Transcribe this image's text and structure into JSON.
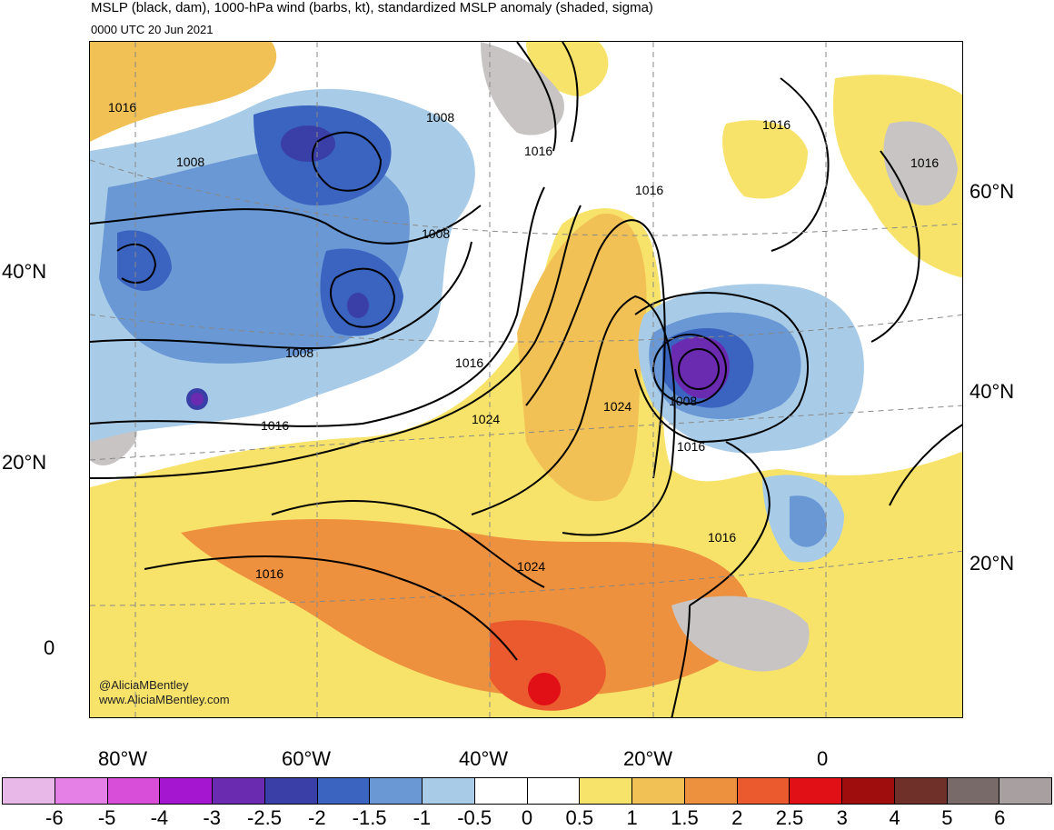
{
  "title": "MSLP (black, dam), 1000-hPa wind (barbs, kt), standardized MSLP anomaly (shaded, sigma)",
  "subtitle": "0000 UTC 20 Jun 2021",
  "credit": [
    "@AliciaMBentley",
    "www.AliciaMBentley.com"
  ],
  "lat_labels_left": [
    "40°N",
    "20°N",
    "0"
  ],
  "lat_labels_right": [
    "60°N",
    "40°N",
    "20°N"
  ],
  "lon_labels": [
    "80°W",
    "60°W",
    "40°W",
    "20°W",
    "0"
  ],
  "contour_labels": [
    "1016",
    "1008",
    "1008",
    "1016",
    "1016",
    "1016",
    "1008",
    "1016",
    "1008",
    "1024",
    "1016",
    "1024",
    "1024",
    "1008",
    "1016",
    "1016",
    "1016",
    "1016"
  ],
  "colorbar": {
    "labels": [
      "-6",
      "-5",
      "-4",
      "-3",
      "-2.5",
      "-2",
      "-1.5",
      "-1",
      "-0.5",
      "0",
      "0.5",
      "1",
      "1.5",
      "2",
      "2.5",
      "3",
      "4",
      "5",
      "6"
    ],
    "colors": [
      "#e8b8e8",
      "#e580e6",
      "#d84ed8",
      "#a516d0",
      "#6a2bb0",
      "#3a3fa8",
      "#3a64c0",
      "#6a98d4",
      "#a8cce8",
      "#ffffff",
      "#ffffff",
      "#f8e36a",
      "#f2c155",
      "#ee913e",
      "#ea5a2e",
      "#e01016",
      "#a00d0d",
      "#6e3028",
      "#776a68",
      "#a8a0a0"
    ]
  }
}
